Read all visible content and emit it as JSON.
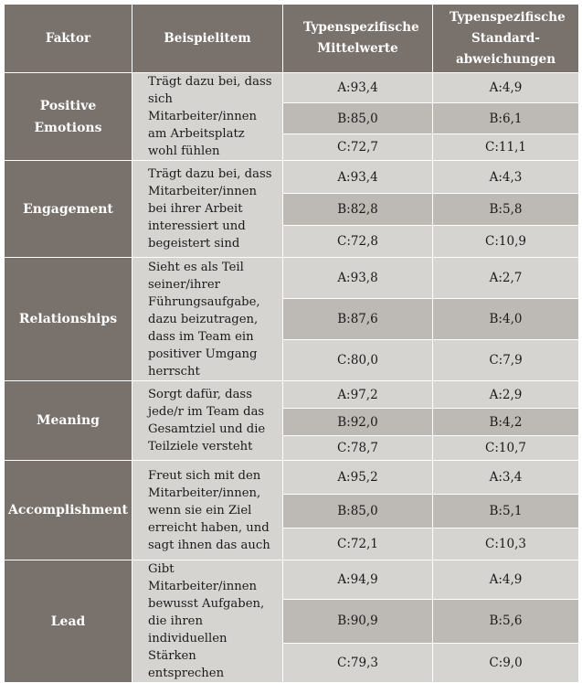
{
  "headers": {
    "factor": "Faktor",
    "item": "Beispielitem",
    "mean": "Typenspezifische Mittelwerte",
    "sd": "Typenspezifische Standard-abweichungen"
  },
  "rows": [
    {
      "factor": "Positive Emotions",
      "item": "Trägt dazu bei, dass sich Mitarbeiter/innen am Arbeitsplatz wohl fühlen",
      "means": [
        "A:93,4",
        "B:85,0",
        "C:72,7"
      ],
      "sds": [
        "A:4,9",
        "B:6,1",
        "C:11,1"
      ]
    },
    {
      "factor": "Engagement",
      "item": "Trägt dazu bei, dass Mitarbeiter/innen bei ihrer Arbeit interessiert und begeistert sind",
      "means": [
        "A:93,4",
        "B:82,8",
        "C:72,8"
      ],
      "sds": [
        "A:4,3",
        "B:5,8",
        "C:10,9"
      ]
    },
    {
      "factor": "Relationships",
      "item": "Sieht es als Teil seiner/ihrer Führungsaufgabe, dazu beizutragen, dass im Team ein positiver Umgang herrscht",
      "means": [
        "A:93,8",
        "B:87,6",
        "C:80,0"
      ],
      "sds": [
        "A:2,7",
        "B:4,0",
        "C:7,9"
      ]
    },
    {
      "factor": "Meaning",
      "item": "Sorgt dafür, dass jede/r im Team das Gesamtziel und die Teilziele versteht",
      "means": [
        "A:97,2",
        "B:92,0",
        "C:78,7"
      ],
      "sds": [
        "A:2,9",
        "B:4,2",
        "C:10,7"
      ]
    },
    {
      "factor": "Accomplishment",
      "item": "Freut sich mit den Mitarbeiter/innen, wenn sie ein Ziel erreicht haben, und sagt ihnen das auch",
      "means": [
        "A:95,2",
        "B:85,0",
        "C:72,1"
      ],
      "sds": [
        "A:3,4",
        "B:5,1",
        "C:10,3"
      ]
    },
    {
      "factor": "Lead",
      "item": "Gibt Mitarbeiter/innen bewusst Aufgaben, die ihren individuellen Stärken entsprechen",
      "means": [
        "A:94,9",
        "B:90,9",
        "C:79,3"
      ],
      "sds": [
        "A:4,9",
        "B:5,6",
        "C:9,0"
      ]
    }
  ]
}
